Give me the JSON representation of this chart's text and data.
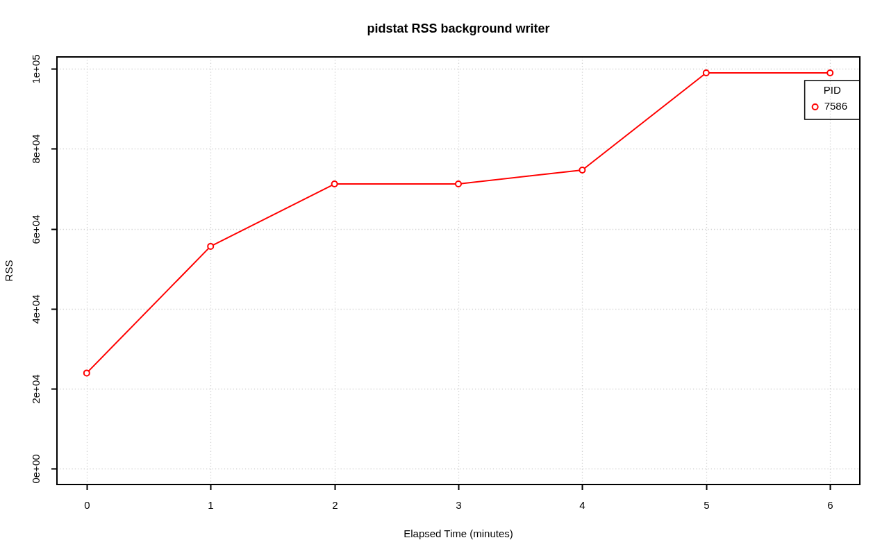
{
  "chart_data": {
    "type": "line",
    "title": "pidstat RSS background writer",
    "xlabel": "Elapsed Time (minutes)",
    "ylabel": "RSS",
    "legend_title": "PID",
    "x": [
      0,
      1,
      2,
      3,
      4,
      5,
      6
    ],
    "series": [
      {
        "name": "7586",
        "color": "#ff0000",
        "values": [
          23900,
          55600,
          71200,
          71200,
          74700,
          99000,
          99000
        ]
      }
    ],
    "xlim": [
      -0.24,
      6.24
    ],
    "ylim": [
      -4000,
      103000
    ],
    "xticks": [
      0,
      1,
      2,
      3,
      4,
      5,
      6
    ],
    "yticks": [
      {
        "value": 0,
        "label": "0e+00"
      },
      {
        "value": 20000,
        "label": "2e+04"
      },
      {
        "value": 40000,
        "label": "4e+04"
      },
      {
        "value": 60000,
        "label": "6e+04"
      },
      {
        "value": 80000,
        "label": "8e+04"
      },
      {
        "value": 100000,
        "label": "1e+05"
      }
    ],
    "grid": true,
    "legend": "top right",
    "marker": "circle",
    "line_style": "solid"
  }
}
